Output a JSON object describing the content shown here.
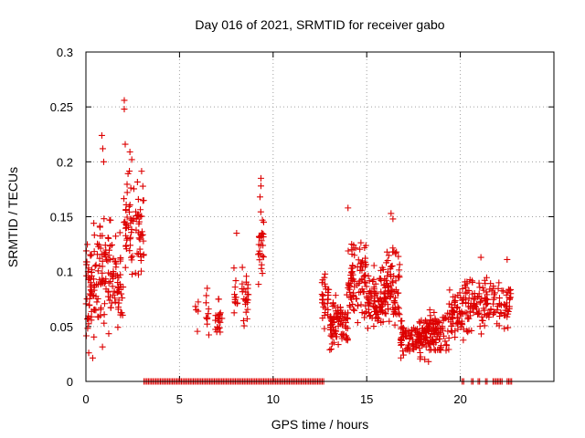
{
  "chart_data": {
    "type": "scatter",
    "title": "Day 016 of 2021, SRMTID for receiver gabo",
    "xlabel": "GPS time / hours",
    "ylabel": "SRMTID / TECUs",
    "xlim": [
      0,
      25
    ],
    "ylim": [
      0,
      0.3
    ],
    "xticks": [
      0,
      5,
      10,
      15,
      20
    ],
    "yticks": [
      0,
      0.05,
      0.1,
      0.15,
      0.2,
      0.25,
      0.3
    ],
    "grid": true,
    "marker": "+",
    "color": "#dd0000",
    "series": [
      {
        "name": "SRMTID",
        "clusters": [
          {
            "x": [
              0.0,
              0.6
            ],
            "y": [
              0.09,
              0.045
            ],
            "n": 60
          },
          {
            "x": [
              0.6,
              1.4
            ],
            "y": [
              0.1,
              0.045
            ],
            "n": 70
          },
          {
            "x": [
              1.4,
              2.0
            ],
            "y": [
              0.085,
              0.04
            ],
            "n": 45
          },
          {
            "x": [
              2.0,
              3.1
            ],
            "y": [
              0.14,
              0.04
            ],
            "n": 80
          },
          {
            "x": [
              5.8,
              6.0
            ],
            "y": [
              0.06,
              0.01
            ],
            "n": 5
          },
          {
            "x": [
              6.4,
              6.6
            ],
            "y": [
              0.06,
              0.018
            ],
            "n": 10
          },
          {
            "x": [
              6.9,
              7.3
            ],
            "y": [
              0.055,
              0.018
            ],
            "n": 20
          },
          {
            "x": [
              7.9,
              8.1
            ],
            "y": [
              0.075,
              0.02
            ],
            "n": 12
          },
          {
            "x": [
              8.3,
              8.7
            ],
            "y": [
              0.075,
              0.025
            ],
            "n": 24
          },
          {
            "x": [
              9.2,
              9.5
            ],
            "y": [
              0.13,
              0.04
            ],
            "n": 25
          },
          {
            "x": [
              12.6,
              13.0
            ],
            "y": [
              0.075,
              0.02
            ],
            "n": 30
          },
          {
            "x": [
              13.0,
              14.0
            ],
            "y": [
              0.055,
              0.02
            ],
            "n": 90
          },
          {
            "x": [
              14.0,
              15.0
            ],
            "y": [
              0.095,
              0.03
            ],
            "n": 90
          },
          {
            "x": [
              15.0,
              16.0
            ],
            "y": [
              0.075,
              0.025
            ],
            "n": 90
          },
          {
            "x": [
              16.0,
              16.8
            ],
            "y": [
              0.085,
              0.03
            ],
            "n": 70
          },
          {
            "x": [
              16.8,
              18.2
            ],
            "y": [
              0.04,
              0.014
            ],
            "n": 110
          },
          {
            "x": [
              18.2,
              19.4
            ],
            "y": [
              0.045,
              0.017
            ],
            "n": 90
          },
          {
            "x": [
              19.4,
              20.2
            ],
            "y": [
              0.06,
              0.02
            ],
            "n": 60
          },
          {
            "x": [
              20.2,
              21.0
            ],
            "y": [
              0.075,
              0.025
            ],
            "n": 50
          },
          {
            "x": [
              21.0,
              21.8
            ],
            "y": [
              0.07,
              0.023
            ],
            "n": 45
          },
          {
            "x": [
              21.8,
              22.7
            ],
            "y": [
              0.07,
              0.023
            ],
            "n": 45
          }
        ],
        "peaks": [
          {
            "x": 2.05,
            "y": 0.256
          },
          {
            "x": 2.05,
            "y": 0.248
          },
          {
            "x": 0.85,
            "y": 0.224
          },
          {
            "x": 0.9,
            "y": 0.212
          },
          {
            "x": 2.1,
            "y": 0.216
          },
          {
            "x": 2.35,
            "y": 0.209
          },
          {
            "x": 2.45,
            "y": 0.202
          },
          {
            "x": 0.95,
            "y": 0.2
          },
          {
            "x": 9.35,
            "y": 0.185
          },
          {
            "x": 9.35,
            "y": 0.178
          },
          {
            "x": 9.3,
            "y": 0.168
          },
          {
            "x": 14.0,
            "y": 0.158
          },
          {
            "x": 16.3,
            "y": 0.153
          },
          {
            "x": 16.4,
            "y": 0.148
          },
          {
            "x": 8.05,
            "y": 0.135
          },
          {
            "x": 21.1,
            "y": 0.113
          },
          {
            "x": 22.5,
            "y": 0.111
          },
          {
            "x": 0.15,
            "y": 0.026
          },
          {
            "x": 18.3,
            "y": 0.018
          },
          {
            "x": 18.1,
            "y": 0.02
          }
        ],
        "zero_segments": [
          [
            3.1,
            12.7
          ],
          [
            20.1,
            20.25
          ],
          [
            20.6,
            20.75
          ],
          [
            20.95,
            21.1
          ],
          [
            21.35,
            21.5
          ],
          [
            21.75,
            22.3
          ],
          [
            22.5,
            22.8
          ]
        ]
      }
    ]
  }
}
